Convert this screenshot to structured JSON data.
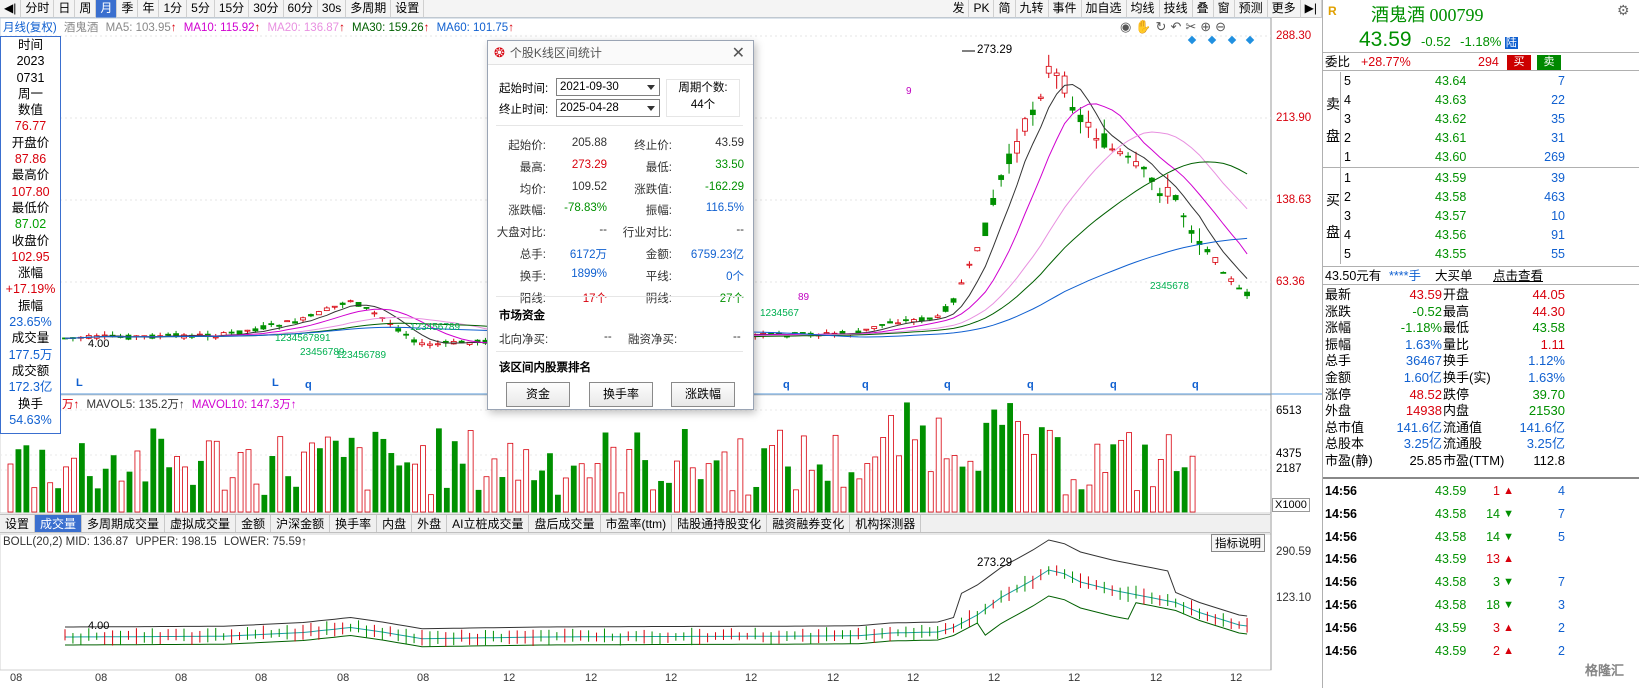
{
  "toolbar": {
    "items": [
      "分时",
      "日",
      "周",
      "月",
      "季",
      "年",
      "1分",
      "5分",
      "15分",
      "30分",
      "60分",
      "30s",
      "多周期",
      "设置"
    ],
    "active_index": 3,
    "right_items": [
      "发",
      "PK",
      "简",
      "九转",
      "事件",
      "加自选",
      "均线",
      "技线",
      "叠",
      "窗",
      "预测",
      "更多"
    ]
  },
  "main_header": {
    "chart_label": "月线(复权)",
    "stock_name": "酒鬼酒",
    "ma5": "MA5: 103.95",
    "ma10": "MA10: 115.92",
    "ma20": "MA20: 136.87",
    "ma30": "MA30: 159.26",
    "ma60": "MA60: 101.75",
    "arrow": "↑"
  },
  "price_axis": [
    "288.30",
    "213.90",
    "138.63",
    "63.36"
  ],
  "high_label": "273.29",
  "low_label": "4.00",
  "markers": {
    "L1": "L",
    "L2": "L",
    "q_labels": [
      "q",
      "q",
      "q",
      "q",
      "q",
      "q",
      "q",
      "q",
      "q",
      "q",
      "q"
    ],
    "seq_green_1": "1234567891",
    "seq_green_2": "23456789",
    "seq_green_3": "123456789",
    "seq_green_4": "123456789",
    "seq_green_5": "1234567",
    "seq_green_up": "23456789",
    "seq_magenta": "89",
    "seq_green_down": "2345678",
    "nine_mark": "9"
  },
  "left_col": {
    "rows": [
      {
        "text": "时间",
        "c": "lab"
      },
      {
        "text": "2023",
        "c": "lab"
      },
      {
        "text": "0731",
        "c": "lab"
      },
      {
        "text": "周一",
        "c": "lab"
      },
      {
        "text": "数值",
        "c": "lab"
      },
      {
        "text": "76.77",
        "c": "red"
      },
      {
        "text": "开盘价",
        "c": "lab"
      },
      {
        "text": "87.86",
        "c": "red"
      },
      {
        "text": "最高价",
        "c": "lab"
      },
      {
        "text": "107.80",
        "c": "red"
      },
      {
        "text": "最低价",
        "c": "lab"
      },
      {
        "text": "87.02",
        "c": "grn"
      },
      {
        "text": "收盘价",
        "c": "lab"
      },
      {
        "text": "102.95",
        "c": "red"
      },
      {
        "text": "涨幅",
        "c": "lab"
      },
      {
        "text": "+17.19%",
        "c": "red"
      },
      {
        "text": "振幅",
        "c": "lab"
      },
      {
        "text": "23.65%",
        "c": "blu"
      },
      {
        "text": "成交量",
        "c": "lab"
      },
      {
        "text": "177.5万",
        "c": "blu"
      },
      {
        "text": "成交额",
        "c": "lab"
      },
      {
        "text": "172.3亿",
        "c": "blu"
      },
      {
        "text": "换手",
        "c": "lab"
      },
      {
        "text": "54.63%",
        "c": "blu"
      }
    ]
  },
  "volume": {
    "header_prefix": "万↑",
    "mavol5": "MAVOL5: 135.2万↑",
    "mavol10": "MAVOL10: 147.3万↑",
    "axis": [
      "6513",
      "4375",
      "2187"
    ],
    "unit": "X1000"
  },
  "tabs": [
    "设置",
    "成交量",
    "多周期成交量",
    "虚拟成交量",
    "金额",
    "沪深金额",
    "换手率",
    "内盘",
    "外盘",
    "AI立桩成交量",
    "盘后成交量",
    "市盈率(ttm)",
    "陆股通持股变化",
    "融资融券变化",
    "机构探测器"
  ],
  "tabs_active": 1,
  "boll": {
    "header": "BOLL(20,2) MID: 136.87",
    "upper": "UPPER: 198.15",
    "lower": "LOWER: 75.59↑",
    "help": "指标说明",
    "axis": [
      "290.59",
      "123.10"
    ],
    "high_label": "273.29",
    "low_label": "4.00"
  },
  "x_axis_labels": [
    "08",
    "08",
    "08",
    "08",
    "08",
    "08",
    "12",
    "12",
    "12",
    "12",
    "12",
    "12",
    "12",
    "12",
    "12",
    "12"
  ],
  "dialog": {
    "title": "个股K线区间统计",
    "start_label": "起始时间:",
    "start_value": "2021-09-30",
    "end_label": "终止时间:",
    "end_value": "2025-04-28",
    "period_label": "周期个数:",
    "period_value": "44个",
    "stats": [
      {
        "l": "起始价:",
        "v": "205.88",
        "vc": "#333",
        "l2": "终止价:",
        "v2": "43.59",
        "v2c": "#333"
      },
      {
        "l": "最高:",
        "v": "273.29",
        "vc": "#d8000c",
        "l2": "最低:",
        "v2": "33.50",
        "v2c": "#009000"
      },
      {
        "l": "均价:",
        "v": "109.52",
        "vc": "#333",
        "l2": "涨跌值:",
        "v2": "-162.29",
        "v2c": "#009000"
      },
      {
        "l": "涨跌幅:",
        "v": "-78.83%",
        "vc": "#009000",
        "l2": "振幅:",
        "v2": "116.5%",
        "v2c": "#1060d0"
      },
      {
        "l": "大盘对比:",
        "v": "--",
        "vc": "#333",
        "l2": "行业对比:",
        "v2": "--",
        "v2c": "#333"
      },
      {
        "l": "总手:",
        "v": "6172万",
        "vc": "#1060d0",
        "l2": "金额:",
        "v2": "6759.23亿",
        "v2c": "#1060d0"
      },
      {
        "l": "换手:",
        "v": "1899%",
        "vc": "#1060d0",
        "l2": "平线:",
        "v2": "0个",
        "v2c": "#1060d0"
      },
      {
        "l": "阳线:",
        "v": "17个",
        "vc": "#d8000c",
        "l2": "阴线:",
        "v2": "27个",
        "v2c": "#009000"
      }
    ],
    "market_funds": "市场资金",
    "north_label": "北向净买:",
    "north_value": "--",
    "margin_label": "融资净买:",
    "margin_value": "--",
    "rank_title": "该区间内股票排名",
    "btn_funds": "资金",
    "btn_turnover": "换手率",
    "btn_change": "涨跌幅"
  },
  "right_panel": {
    "logo": "R",
    "name": "酒鬼酒",
    "code": "000799",
    "price": "43.59",
    "change": "-0.52",
    "pct": "-1.18%",
    "tag": "陆",
    "webi_label": "委比",
    "webi_pct": "+28.77%",
    "webi_num": "294",
    "buy_btn": "买",
    "sell_btn": "卖",
    "sell_label": [
      "卖",
      "盘"
    ],
    "buy_label": [
      "买",
      "盘"
    ],
    "asks": [
      {
        "n": "5",
        "p": "43.64",
        "v": "7"
      },
      {
        "n": "4",
        "p": "43.63",
        "v": "22"
      },
      {
        "n": "3",
        "p": "43.62",
        "v": "35"
      },
      {
        "n": "2",
        "p": "43.61",
        "v": "31"
      },
      {
        "n": "1",
        "p": "43.60",
        "v": "269"
      }
    ],
    "bids": [
      {
        "n": "1",
        "p": "43.59",
        "v": "39"
      },
      {
        "n": "2",
        "p": "43.58",
        "v": "463"
      },
      {
        "n": "3",
        "p": "43.57",
        "v": "10"
      },
      {
        "n": "4",
        "p": "43.56",
        "v": "91"
      },
      {
        "n": "5",
        "p": "43.55",
        "v": "55"
      }
    ],
    "bigorder": {
      "a": "43.50元有",
      "b": "****手",
      "c": "大买单",
      "d": "点击查看"
    },
    "quotes": [
      {
        "l1": "最新",
        "v1": "43.59",
        "c1": "r",
        "l2": "开盘",
        "v2": "44.05",
        "c2": "r"
      },
      {
        "l1": "涨跌",
        "v1": "-0.52",
        "c1": "g",
        "l2": "最高",
        "v2": "44.30",
        "c2": "r"
      },
      {
        "l1": "涨幅",
        "v1": "-1.18%",
        "c1": "g",
        "l2": "最低",
        "v2": "43.58",
        "c2": "g"
      },
      {
        "l1": "振幅",
        "v1": "1.63%",
        "c1": "b",
        "l2": "量比",
        "v2": "1.11",
        "c2": "r"
      },
      {
        "l1": "总手",
        "v1": "36467",
        "c1": "b",
        "l2": "换手",
        "v2": "1.12%",
        "c2": "b"
      },
      {
        "l1": "金额",
        "v1": "1.60亿",
        "c1": "b",
        "l2": "换手(实)",
        "v2": "1.63%",
        "c2": "b"
      },
      {
        "l1": "涨停",
        "v1": "48.52",
        "c1": "r",
        "l2": "跌停",
        "v2": "39.70",
        "c2": "g"
      },
      {
        "l1": "外盘",
        "v1": "14938",
        "c1": "r",
        "l2": "内盘",
        "v2": "21530",
        "c2": "g"
      },
      {
        "l1": "总市值",
        "v1": "141.6亿",
        "c1": "b",
        "l2": "流通值",
        "v2": "141.6亿",
        "c2": "b"
      },
      {
        "l1": "总股本",
        "v1": "3.25亿",
        "c1": "b",
        "l2": "流通股",
        "v2": "3.25亿",
        "c2": "b"
      },
      {
        "l1": "市盈(静)",
        "v1": "25.85",
        "c1": "k",
        "l2": "市盈(TTM)",
        "v2": "112.8",
        "c2": "k"
      }
    ],
    "ticks": [
      {
        "t": "14:56",
        "p": "43.59",
        "v": "1",
        "d": "up"
      },
      {
        "t": "14:56",
        "p": "43.58",
        "v": "14",
        "d": "down"
      },
      {
        "t": "14:56",
        "p": "43.58",
        "v": "14",
        "d": "down"
      },
      {
        "t": "14:56",
        "p": "43.59",
        "v": "13",
        "d": "up"
      },
      {
        "t": "14:56",
        "p": "43.58",
        "v": "3",
        "d": "down"
      },
      {
        "t": "14:56",
        "p": "43.58",
        "v": "18",
        "d": "down"
      },
      {
        "t": "14:56",
        "p": "43.59",
        "v": "3",
        "d": "up"
      },
      {
        "t": "14:56",
        "p": "43.59",
        "v": "2",
        "d": "up"
      }
    ],
    "tick_edge": [
      "4",
      "7",
      "5",
      "",
      "7",
      "3",
      "2",
      "2"
    ],
    "watermark": "格隆汇"
  }
}
